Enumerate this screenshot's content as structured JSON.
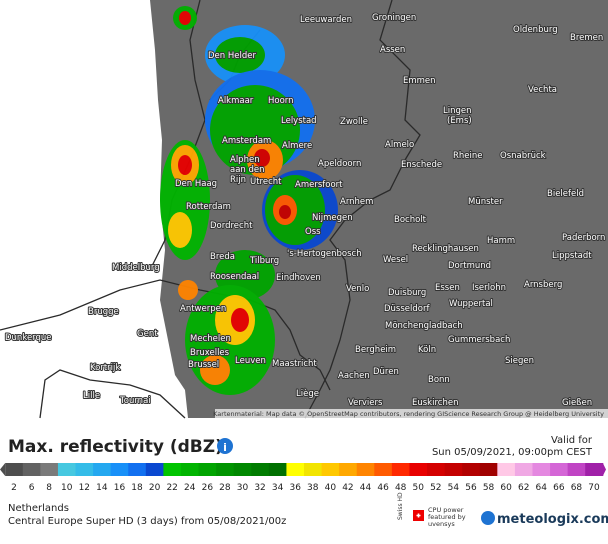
{
  "map": {
    "labels": [
      "Leeuwarden",
      "Groningen",
      "Oldenburg",
      "Bremen",
      "Den Helder",
      "Assen",
      "Emmen",
      "Vechta",
      "Alkmaar",
      "Hoorn",
      "Lelystad",
      "Zwolle",
      "Lingen",
      "(Ems)",
      "Amsterdam",
      "Almere",
      "Almelo",
      "Rheine",
      "Osnabrück",
      "Alphen",
      "aan den",
      "Rijn",
      "Apeldoorn",
      "Enschede",
      "Den Haag",
      "Utrecht",
      "Amersfoort",
      "Bielefeld",
      "Arnhem",
      "Münster",
      "Rotterdam",
      "Nijmegen",
      "Bocholt",
      "Dordrecht",
      "Oss",
      "Paderborn",
      "Hamm",
      "'s-Hertogenbosch",
      "Recklinghausen",
      "Lippstadt",
      "Breda",
      "Tilburg",
      "Wesel",
      "Dortmund",
      "Middelburg",
      "Roosendaal",
      "Eindhoven",
      "Venlo",
      "Essen",
      "Iserlohn",
      "Arnsberg",
      "Duisburg",
      "Wuppertal",
      "Brugge",
      "Antwerpen",
      "Düsseldorf",
      "Gent",
      "Mönchengladbach",
      "Mechelen",
      "Gummersbach",
      "Dunkerque",
      "Bruxelles",
      "Brussel",
      "Leuven",
      "Bergheim",
      "Köln",
      "Siegen",
      "Kortrijk",
      "Maastricht",
      "Aachen",
      "Düren",
      "Bonn",
      "Lille",
      "Tournai",
      "Liège",
      "Verviers",
      "Euskirchen",
      "Gießen"
    ],
    "attribution": "Kartenmaterial: Map data © OpenStreetMap contributors, rendering GIScience Research Group @ Heidelberg University"
  },
  "legend": {
    "title": "Max. reflectivity (dBZ)",
    "info": "i",
    "ticks": [
      2,
      6,
      8,
      10,
      12,
      14,
      16,
      18,
      20,
      22,
      24,
      26,
      28,
      30,
      32,
      34,
      36,
      38,
      40,
      42,
      44,
      46,
      48,
      50,
      52,
      54,
      56,
      58,
      60,
      62,
      64,
      66,
      68,
      70
    ],
    "colors": [
      "#4e4e4e",
      "#626262",
      "#7a7a7a",
      "#46c8e0",
      "#34bce8",
      "#24a8f0",
      "#1890f8",
      "#1270f0",
      "#0a48d0",
      "#00c400",
      "#00b400",
      "#00a400",
      "#009400",
      "#008800",
      "#007c00",
      "#007000",
      "#ffff00",
      "#f2e400",
      "#ffc800",
      "#ffa800",
      "#ff8400",
      "#ff5a00",
      "#ff2800",
      "#e80000",
      "#d40000",
      "#c40000",
      "#b20000",
      "#a00000",
      "#ffc8e6",
      "#f0a8e4",
      "#e488e0",
      "#d466d6",
      "#c044c4",
      "#a020a8"
    ]
  },
  "footer": {
    "valid_label": "Valid for",
    "valid_time": "Sun 05/09/2021, 09:00pm CEST",
    "region": "Netherlands",
    "model": "Central Europe Super HD (3 days) from 05/08/2021/00z",
    "swiss": "Swiss HD",
    "cpu": "CPU power featured by uvensys",
    "brand": "meteologix.com"
  }
}
